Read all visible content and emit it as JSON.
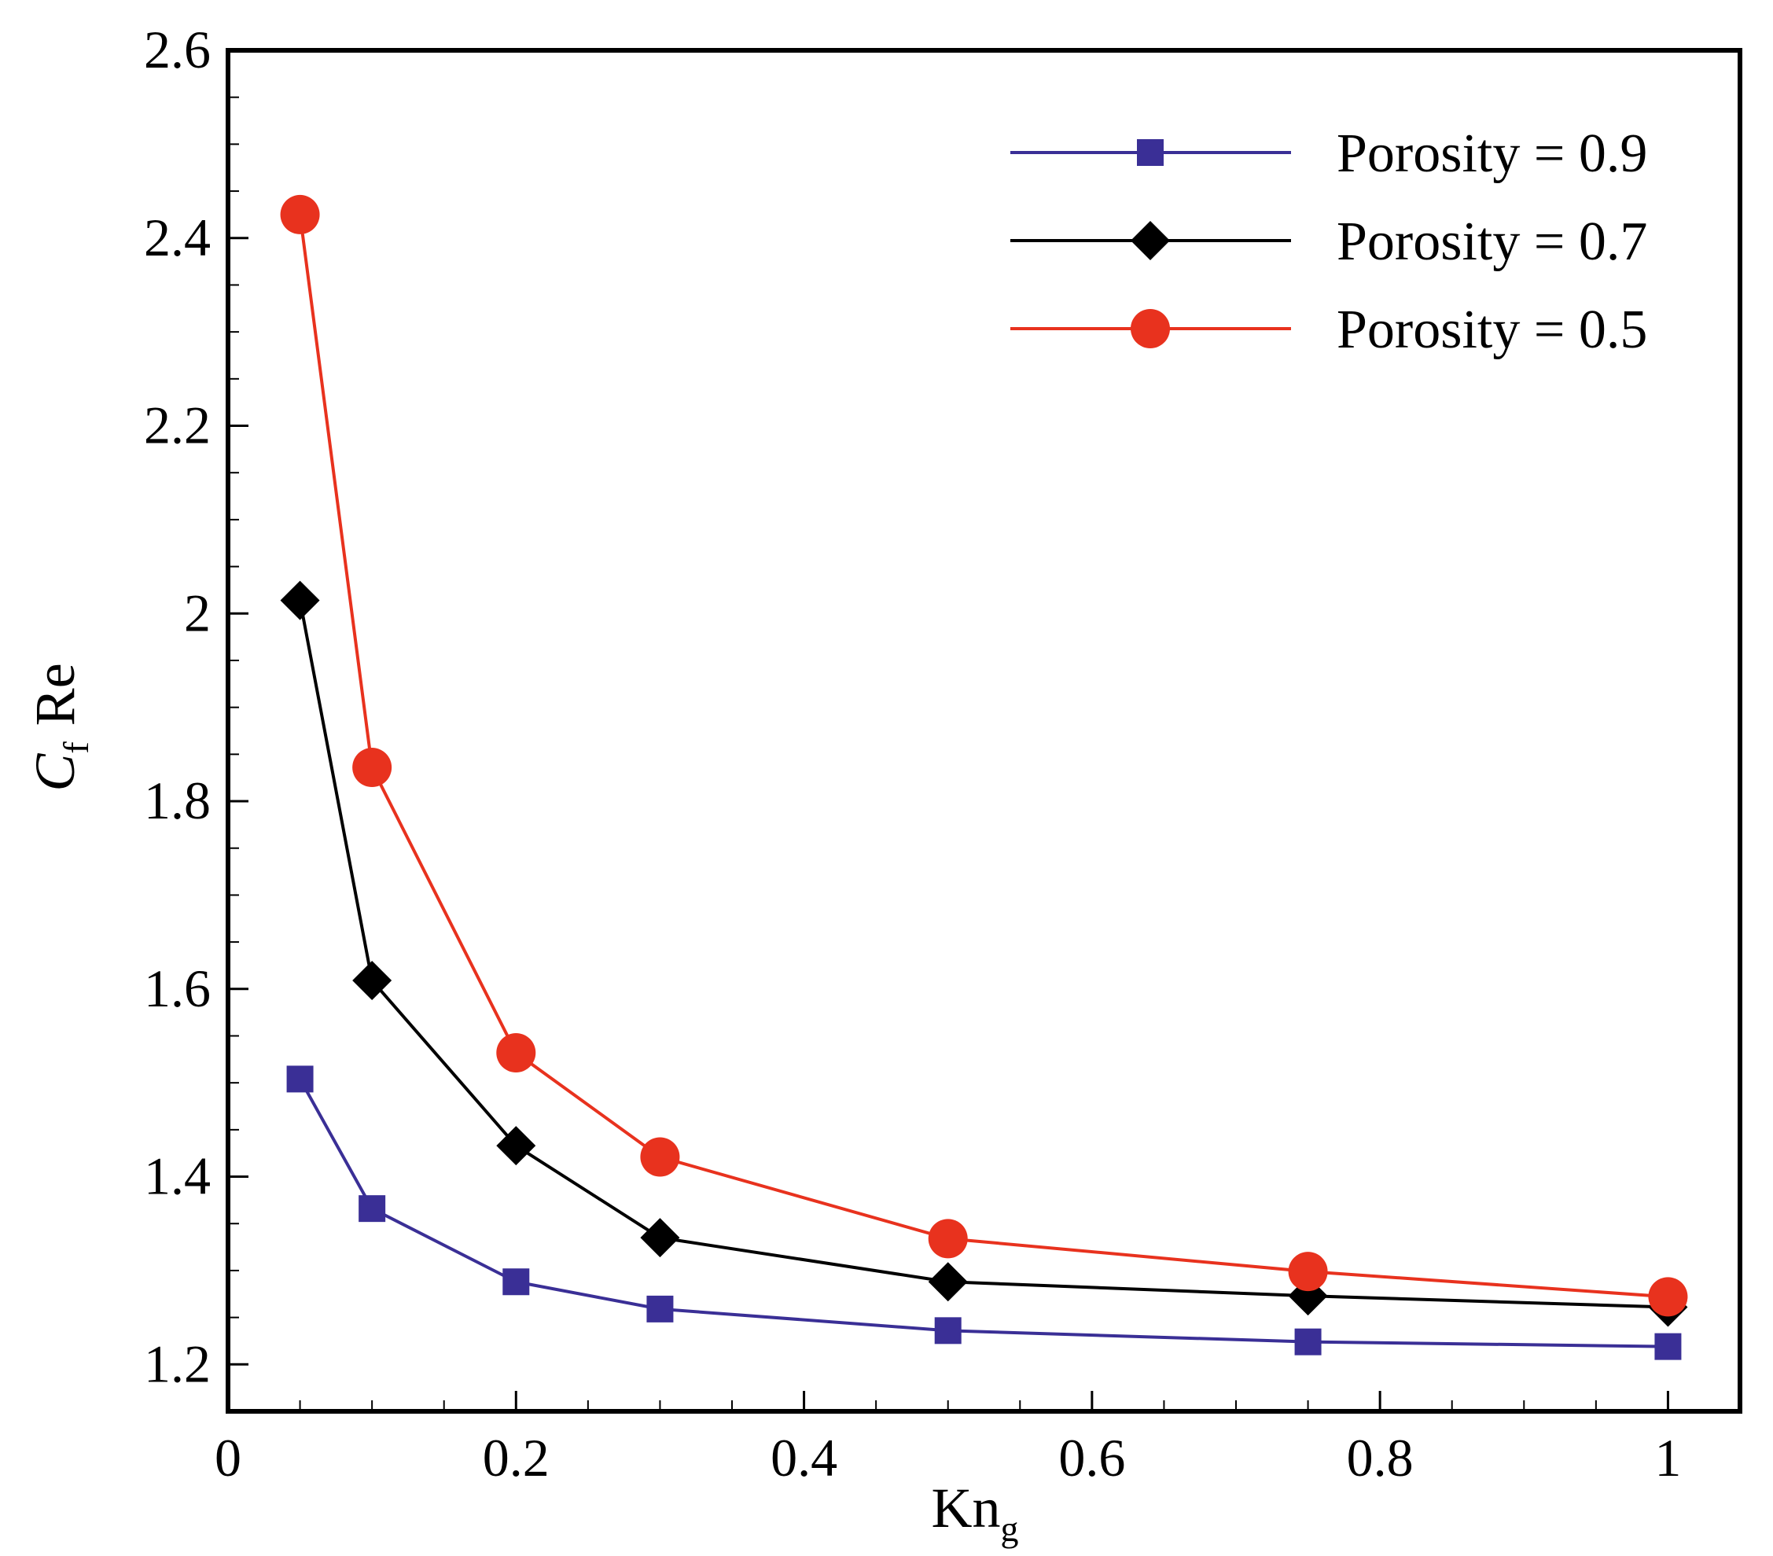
{
  "chart_data": {
    "type": "line",
    "title": "",
    "xlabel": "Kn",
    "xlabel_sub": "g",
    "ylabel": "Re",
    "ylabel_main": "C",
    "ylabel_sub": "f",
    "xlim": [
      0,
      1.05
    ],
    "ylim": [
      1.15,
      2.6
    ],
    "xticks": [
      0,
      0.2,
      0.4,
      0.6,
      0.8,
      1
    ],
    "xtick_labels": [
      "0",
      "0.2",
      "0.4",
      "0.6",
      "0.8",
      "1"
    ],
    "yticks": [
      1.2,
      1.4,
      1.6,
      1.8,
      2.0,
      2.2,
      2.4,
      2.6
    ],
    "ytick_labels": [
      "1.2",
      "1.4",
      "1.6",
      "1.8",
      "2",
      "2.2",
      "2.4",
      "2.6"
    ],
    "x_minor_step": 0.05,
    "y_minor_step": 0.05,
    "grid": false,
    "legend_position": "top-right",
    "x": [
      0.05,
      0.1,
      0.2,
      0.3,
      0.5,
      0.75,
      1.0
    ],
    "series": [
      {
        "name": "Porosity = 0.9",
        "marker": "square",
        "color": "#3a2f96",
        "values": [
          1.504,
          1.366,
          1.288,
          1.259,
          1.236,
          1.224,
          1.219
        ]
      },
      {
        "name": "Porosity = 0.7",
        "marker": "diamond",
        "color": "#000000",
        "values": [
          2.014,
          1.609,
          1.433,
          1.335,
          1.288,
          1.273,
          1.261
        ]
      },
      {
        "name": "Porosity = 0.5",
        "marker": "circle",
        "color": "#e8321e",
        "values": [
          2.425,
          1.836,
          1.532,
          1.421,
          1.334,
          1.299,
          1.272
        ]
      }
    ]
  }
}
